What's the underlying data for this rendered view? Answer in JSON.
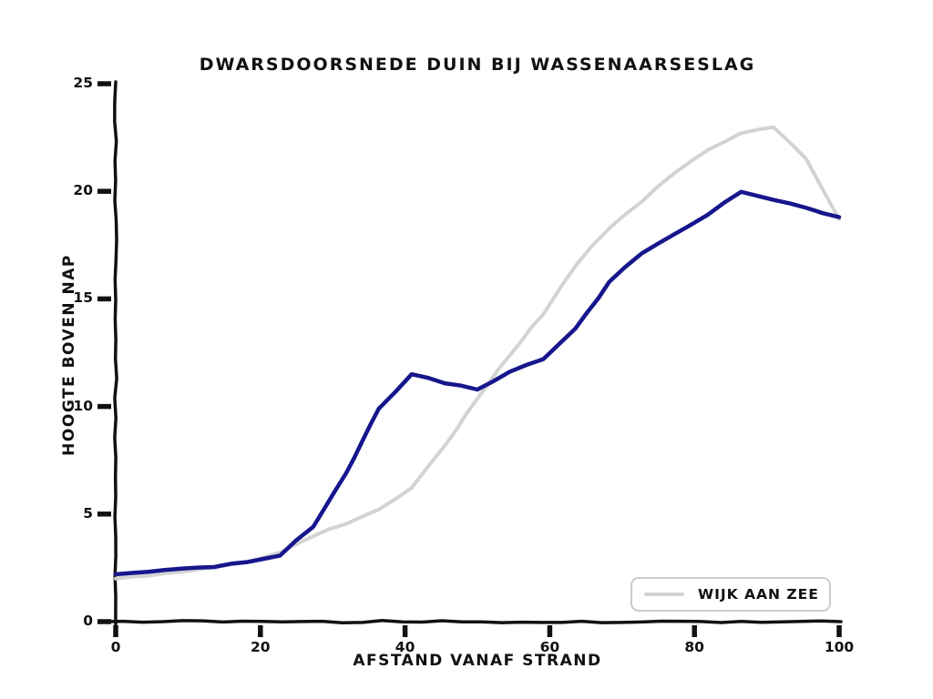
{
  "page": {
    "background": "#ffffff"
  },
  "chart_data": {
    "type": "line",
    "style": "xkcd-hand-drawn",
    "title": "DWARSDOORSNEDE DUIN BIJ WASSENAARSESLAG",
    "xlabel": "AFSTAND VANAF STRAND",
    "ylabel": "HOOGTE BOVEN NAP",
    "xlim": [
      0,
      100
    ],
    "ylim": [
      0,
      25
    ],
    "x_ticks": [
      0,
      20,
      40,
      60,
      80,
      100
    ],
    "y_ticks": [
      0,
      5,
      10,
      15,
      20,
      25
    ],
    "grid": false,
    "legend": {
      "position": "lower right",
      "entries": [
        {
          "label": "WIJK AAN ZEE",
          "color": "#d3d3d3"
        }
      ]
    },
    "x": [
      0,
      4.5,
      9.1,
      13.6,
      18.2,
      22.7,
      27.3,
      31.8,
      36.4,
      40.9,
      45.5,
      50,
      54.5,
      59.1,
      63.6,
      68.2,
      72.7,
      77.3,
      81.8,
      86.4,
      90.9,
      95.5,
      100
    ],
    "series": [
      {
        "legend_label": "WIJK AAN ZEE",
        "color": "#d3d3d3",
        "stroke_width": 4,
        "values": [
          2.0,
          2.15,
          2.3,
          2.5,
          2.75,
          3.2,
          4.0,
          4.55,
          5.2,
          6.2,
          8.2,
          10.4,
          12.4,
          14.3,
          16.6,
          18.3,
          19.5,
          20.9,
          21.9,
          22.7,
          23.0,
          21.5,
          18.7
        ]
      },
      {
        "legend_label": null,
        "color": "#16168d",
        "stroke_width": 4.5,
        "values": [
          2.2,
          2.3,
          2.45,
          2.55,
          2.8,
          3.1,
          4.4,
          6.9,
          9.9,
          11.5,
          11.1,
          10.8,
          11.6,
          12.2,
          13.6,
          15.8,
          17.1,
          18.0,
          18.9,
          20.0,
          19.6,
          19.2,
          18.8
        ]
      }
    ],
    "colors": {
      "ink": "#111111",
      "navy_line": "#16168d",
      "gray_line": "#d3d3d3",
      "legend_border": "#cbcbcb"
    }
  }
}
